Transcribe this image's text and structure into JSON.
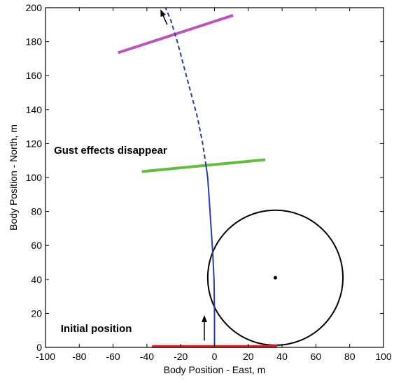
{
  "chart_data": {
    "type": "line",
    "xlabel": "Body Position - East, m",
    "ylabel": "Body Position - North, m",
    "xlim": [
      -100,
      100
    ],
    "ylim": [
      0,
      200
    ],
    "xticks": [
      -100,
      -80,
      -60,
      -40,
      -20,
      0,
      20,
      40,
      60,
      80,
      100
    ],
    "yticks": [
      0,
      20,
      40,
      60,
      80,
      100,
      120,
      140,
      160,
      180,
      200
    ],
    "grid": false,
    "colors": {
      "trajectory": "#2b3f99",
      "initial_line": "#ee2222",
      "gust_line": "#66bb44",
      "final_line": "#bb55bb",
      "circle": "#000000"
    },
    "series": [
      {
        "style": "solid",
        "x": [
          0,
          0,
          -0.3,
          -1,
          -2,
          -3,
          -4,
          -5
        ],
        "y": [
          0,
          20,
          40,
          55,
          70,
          85,
          100,
          107
        ]
      },
      {
        "style": "dashed",
        "x": [
          -5,
          -7,
          -10,
          -14,
          -18,
          -22,
          -26,
          -29
        ],
        "y": [
          107,
          120,
          135,
          150,
          165,
          180,
          193,
          200
        ]
      }
    ],
    "lines": [
      {
        "x": [
          -37,
          37
        ],
        "y": [
          0.5,
          0.5
        ]
      },
      {
        "x": [
          -43,
          30
        ],
        "y": [
          103.5,
          110.5
        ]
      },
      {
        "x": [
          -57,
          11
        ],
        "y": [
          173.5,
          195.5
        ]
      }
    ],
    "circle": {
      "center": [
        36,
        41
      ],
      "radius": 40
    },
    "center_point": {
      "x": 36,
      "y": 41
    },
    "arrows": [
      {
        "x": [
          -6,
          -6
        ],
        "y": [
          4,
          19
        ]
      },
      {
        "x": [
          -28,
          -32
        ],
        "y": [
          190,
          199
        ]
      }
    ],
    "annotations": [
      {
        "text": "Gust effects disappear",
        "x": -95,
        "y": 114
      },
      {
        "text": "Initial position",
        "x": -91,
        "y": 9
      }
    ]
  }
}
